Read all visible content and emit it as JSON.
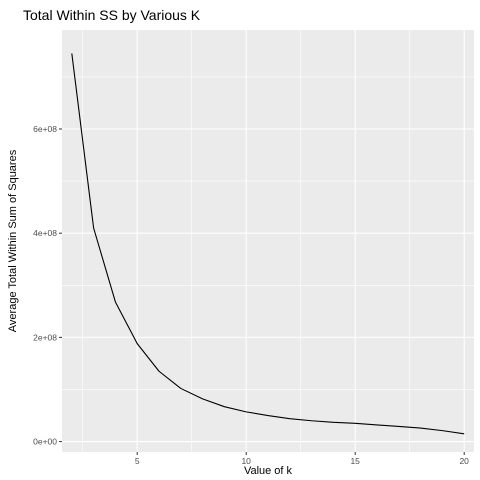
{
  "chart_data": {
    "type": "line",
    "title": "Total Within SS by Various K",
    "xlabel": "Value of k",
    "ylabel": "Average Total Within Sum of Squares",
    "x_ticks": [
      5,
      10,
      15,
      20
    ],
    "x_tick_labels": [
      "5",
      "10",
      "15",
      "20"
    ],
    "y_ticks": [
      0,
      200000000,
      400000000,
      600000000
    ],
    "y_tick_labels": [
      "0e+00",
      "2e+08",
      "4e+08",
      "6e+08"
    ],
    "xlim": [
      1.55,
      20.45
    ],
    "ylim": [
      -20000000,
      790000000
    ],
    "grid": true,
    "legend": "none",
    "series": [
      {
        "x": [
          2,
          3,
          4,
          5,
          6,
          7,
          8,
          9,
          10,
          11,
          12,
          13,
          14,
          15,
          16,
          17,
          18,
          19,
          20
        ],
        "values": [
          745000000,
          410000000,
          268000000,
          188000000,
          135000000,
          102000000,
          82000000,
          67000000,
          57000000,
          50000000,
          44000000,
          40000000,
          37000000,
          35000000,
          32000000,
          29000000,
          26000000,
          21000000,
          15000000
        ]
      }
    ],
    "colors": {
      "panel_background": "#ebebeb",
      "grid_major": "#ffffff",
      "line": "#000000",
      "tick": "#333333"
    }
  }
}
